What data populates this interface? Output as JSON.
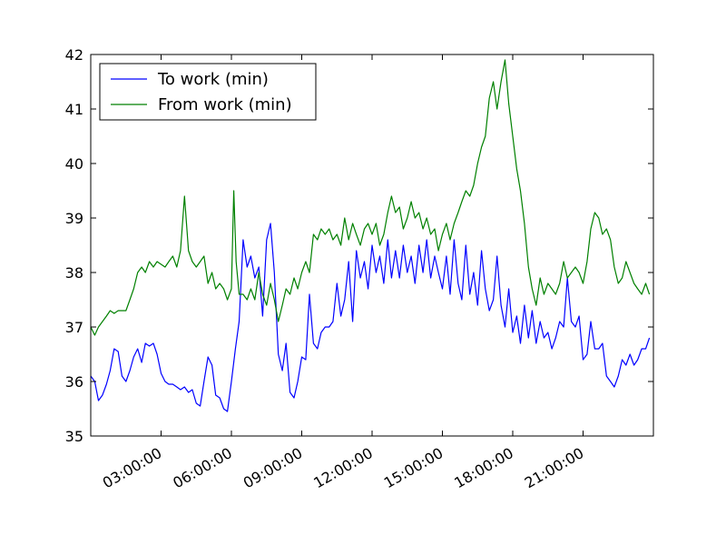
{
  "chart_data": {
    "type": "line",
    "title": "",
    "xlabel": "",
    "ylabel": "",
    "x_unit": "hours",
    "xlim": [
      0,
      24
    ],
    "ylim": [
      35,
      42
    ],
    "grid": false,
    "legend_position": "top-left",
    "y_ticks": [
      "35",
      "36",
      "37",
      "38",
      "39",
      "40",
      "41",
      "42"
    ],
    "x_ticks": [
      {
        "value": 3,
        "label": "03:00:00"
      },
      {
        "value": 6,
        "label": "06:00:00"
      },
      {
        "value": 9,
        "label": "09:00:00"
      },
      {
        "value": 12,
        "label": "12:00:00"
      },
      {
        "value": 15,
        "label": "15:00:00"
      },
      {
        "value": 18,
        "label": "18:00:00"
      },
      {
        "value": 21,
        "label": "21:00:00"
      }
    ],
    "series": [
      {
        "name": "To work (min)",
        "color": "#0000ff",
        "points": [
          [
            0,
            36.1
          ],
          [
            0.17,
            36.0
          ],
          [
            0.33,
            35.65
          ],
          [
            0.5,
            35.75
          ],
          [
            0.67,
            35.95
          ],
          [
            0.83,
            36.2
          ],
          [
            1.0,
            36.6
          ],
          [
            1.17,
            36.55
          ],
          [
            1.33,
            36.1
          ],
          [
            1.5,
            36.0
          ],
          [
            1.67,
            36.2
          ],
          [
            1.83,
            36.45
          ],
          [
            2.0,
            36.6
          ],
          [
            2.17,
            36.35
          ],
          [
            2.33,
            36.7
          ],
          [
            2.5,
            36.65
          ],
          [
            2.67,
            36.7
          ],
          [
            2.83,
            36.5
          ],
          [
            3.0,
            36.15
          ],
          [
            3.17,
            36.0
          ],
          [
            3.33,
            35.95
          ],
          [
            3.5,
            35.95
          ],
          [
            3.67,
            35.9
          ],
          [
            3.83,
            35.85
          ],
          [
            4.0,
            35.9
          ],
          [
            4.17,
            35.8
          ],
          [
            4.33,
            35.85
          ],
          [
            4.5,
            35.6
          ],
          [
            4.67,
            35.55
          ],
          [
            4.83,
            36.0
          ],
          [
            5.0,
            36.45
          ],
          [
            5.17,
            36.3
          ],
          [
            5.33,
            35.75
          ],
          [
            5.5,
            35.7
          ],
          [
            5.67,
            35.5
          ],
          [
            5.83,
            35.45
          ],
          [
            6.0,
            36.0
          ],
          [
            6.17,
            36.6
          ],
          [
            6.33,
            37.1
          ],
          [
            6.5,
            38.6
          ],
          [
            6.67,
            38.1
          ],
          [
            6.83,
            38.3
          ],
          [
            7.0,
            37.9
          ],
          [
            7.17,
            38.1
          ],
          [
            7.33,
            37.2
          ],
          [
            7.5,
            38.6
          ],
          [
            7.67,
            38.9
          ],
          [
            7.83,
            38.0
          ],
          [
            8.0,
            36.5
          ],
          [
            8.17,
            36.2
          ],
          [
            8.33,
            36.7
          ],
          [
            8.5,
            35.8
          ],
          [
            8.67,
            35.7
          ],
          [
            8.83,
            36.0
          ],
          [
            9.0,
            36.45
          ],
          [
            9.17,
            36.4
          ],
          [
            9.33,
            37.6
          ],
          [
            9.5,
            36.7
          ],
          [
            9.67,
            36.6
          ],
          [
            9.83,
            36.9
          ],
          [
            10.0,
            37.0
          ],
          [
            10.17,
            37.0
          ],
          [
            10.33,
            37.1
          ],
          [
            10.5,
            37.8
          ],
          [
            10.67,
            37.2
          ],
          [
            10.83,
            37.5
          ],
          [
            11.0,
            38.2
          ],
          [
            11.17,
            37.1
          ],
          [
            11.33,
            38.4
          ],
          [
            11.5,
            37.9
          ],
          [
            11.67,
            38.2
          ],
          [
            11.83,
            37.7
          ],
          [
            12.0,
            38.5
          ],
          [
            12.17,
            38.0
          ],
          [
            12.33,
            38.3
          ],
          [
            12.5,
            37.8
          ],
          [
            12.67,
            38.6
          ],
          [
            12.83,
            37.9
          ],
          [
            13.0,
            38.4
          ],
          [
            13.17,
            37.9
          ],
          [
            13.33,
            38.5
          ],
          [
            13.5,
            38.0
          ],
          [
            13.67,
            38.3
          ],
          [
            13.83,
            37.8
          ],
          [
            14.0,
            38.5
          ],
          [
            14.17,
            38.0
          ],
          [
            14.33,
            38.6
          ],
          [
            14.5,
            37.9
          ],
          [
            14.67,
            38.3
          ],
          [
            14.83,
            38.0
          ],
          [
            15.0,
            37.7
          ],
          [
            15.17,
            38.3
          ],
          [
            15.33,
            37.6
          ],
          [
            15.5,
            38.6
          ],
          [
            15.67,
            37.8
          ],
          [
            15.83,
            37.5
          ],
          [
            16.0,
            38.5
          ],
          [
            16.17,
            37.6
          ],
          [
            16.33,
            38.0
          ],
          [
            16.5,
            37.4
          ],
          [
            16.67,
            38.4
          ],
          [
            16.83,
            37.7
          ],
          [
            17.0,
            37.3
          ],
          [
            17.17,
            37.5
          ],
          [
            17.33,
            38.3
          ],
          [
            17.5,
            37.4
          ],
          [
            17.67,
            37.0
          ],
          [
            17.83,
            37.7
          ],
          [
            18.0,
            36.9
          ],
          [
            18.17,
            37.2
          ],
          [
            18.33,
            36.7
          ],
          [
            18.5,
            37.4
          ],
          [
            18.67,
            36.8
          ],
          [
            18.83,
            37.3
          ],
          [
            19.0,
            36.7
          ],
          [
            19.17,
            37.1
          ],
          [
            19.33,
            36.8
          ],
          [
            19.5,
            36.9
          ],
          [
            19.67,
            36.6
          ],
          [
            19.83,
            36.8
          ],
          [
            20.0,
            37.1
          ],
          [
            20.17,
            37.0
          ],
          [
            20.33,
            37.9
          ],
          [
            20.5,
            37.1
          ],
          [
            20.67,
            37.0
          ],
          [
            20.83,
            37.2
          ],
          [
            21.0,
            36.4
          ],
          [
            21.17,
            36.5
          ],
          [
            21.33,
            37.1
          ],
          [
            21.5,
            36.6
          ],
          [
            21.67,
            36.6
          ],
          [
            21.83,
            36.7
          ],
          [
            22.0,
            36.1
          ],
          [
            22.17,
            36.0
          ],
          [
            22.33,
            35.9
          ],
          [
            22.5,
            36.1
          ],
          [
            22.67,
            36.4
          ],
          [
            22.83,
            36.3
          ],
          [
            23.0,
            36.5
          ],
          [
            23.17,
            36.3
          ],
          [
            23.33,
            36.4
          ],
          [
            23.5,
            36.6
          ],
          [
            23.67,
            36.6
          ],
          [
            23.83,
            36.8
          ]
        ]
      },
      {
        "name": "From work (min)",
        "color": "#008000",
        "points": [
          [
            0,
            37.0
          ],
          [
            0.17,
            36.85
          ],
          [
            0.33,
            37.0
          ],
          [
            0.5,
            37.1
          ],
          [
            0.67,
            37.2
          ],
          [
            0.83,
            37.3
          ],
          [
            1.0,
            37.25
          ],
          [
            1.17,
            37.3
          ],
          [
            1.33,
            37.3
          ],
          [
            1.5,
            37.3
          ],
          [
            1.67,
            37.5
          ],
          [
            1.83,
            37.7
          ],
          [
            2.0,
            38.0
          ],
          [
            2.17,
            38.1
          ],
          [
            2.33,
            38.0
          ],
          [
            2.5,
            38.2
          ],
          [
            2.67,
            38.1
          ],
          [
            2.83,
            38.2
          ],
          [
            3.0,
            38.15
          ],
          [
            3.17,
            38.1
          ],
          [
            3.33,
            38.2
          ],
          [
            3.5,
            38.3
          ],
          [
            3.67,
            38.1
          ],
          [
            3.83,
            38.4
          ],
          [
            4.0,
            39.4
          ],
          [
            4.17,
            38.4
          ],
          [
            4.33,
            38.2
          ],
          [
            4.5,
            38.1
          ],
          [
            4.67,
            38.2
          ],
          [
            4.83,
            38.3
          ],
          [
            5.0,
            37.8
          ],
          [
            5.17,
            38.0
          ],
          [
            5.33,
            37.7
          ],
          [
            5.5,
            37.8
          ],
          [
            5.67,
            37.7
          ],
          [
            5.83,
            37.5
          ],
          [
            6.0,
            37.7
          ],
          [
            6.1,
            39.5
          ],
          [
            6.2,
            38.2
          ],
          [
            6.33,
            37.6
          ],
          [
            6.5,
            37.6
          ],
          [
            6.67,
            37.5
          ],
          [
            6.83,
            37.7
          ],
          [
            7.0,
            37.5
          ],
          [
            7.17,
            38.0
          ],
          [
            7.33,
            37.6
          ],
          [
            7.5,
            37.4
          ],
          [
            7.67,
            37.8
          ],
          [
            7.83,
            37.5
          ],
          [
            8.0,
            37.1
          ],
          [
            8.17,
            37.4
          ],
          [
            8.33,
            37.7
          ],
          [
            8.5,
            37.6
          ],
          [
            8.67,
            37.9
          ],
          [
            8.83,
            37.7
          ],
          [
            9.0,
            38.0
          ],
          [
            9.17,
            38.2
          ],
          [
            9.33,
            38.0
          ],
          [
            9.5,
            38.7
          ],
          [
            9.67,
            38.6
          ],
          [
            9.83,
            38.8
          ],
          [
            10.0,
            38.7
          ],
          [
            10.17,
            38.8
          ],
          [
            10.33,
            38.6
          ],
          [
            10.5,
            38.7
          ],
          [
            10.67,
            38.5
          ],
          [
            10.83,
            39.0
          ],
          [
            11.0,
            38.6
          ],
          [
            11.17,
            38.9
          ],
          [
            11.33,
            38.7
          ],
          [
            11.5,
            38.5
          ],
          [
            11.67,
            38.8
          ],
          [
            11.83,
            38.9
          ],
          [
            12.0,
            38.7
          ],
          [
            12.17,
            38.9
          ],
          [
            12.33,
            38.5
          ],
          [
            12.5,
            38.7
          ],
          [
            12.67,
            39.1
          ],
          [
            12.83,
            39.4
          ],
          [
            13.0,
            39.1
          ],
          [
            13.17,
            39.2
          ],
          [
            13.33,
            38.8
          ],
          [
            13.5,
            39.0
          ],
          [
            13.67,
            39.3
          ],
          [
            13.83,
            39.0
          ],
          [
            14.0,
            39.1
          ],
          [
            14.17,
            38.8
          ],
          [
            14.33,
            39.0
          ],
          [
            14.5,
            38.7
          ],
          [
            14.67,
            38.8
          ],
          [
            14.83,
            38.4
          ],
          [
            15.0,
            38.7
          ],
          [
            15.17,
            38.9
          ],
          [
            15.33,
            38.6
          ],
          [
            15.5,
            38.9
          ],
          [
            15.67,
            39.1
          ],
          [
            15.83,
            39.3
          ],
          [
            16.0,
            39.5
          ],
          [
            16.17,
            39.4
          ],
          [
            16.33,
            39.6
          ],
          [
            16.5,
            40.0
          ],
          [
            16.67,
            40.3
          ],
          [
            16.83,
            40.5
          ],
          [
            17.0,
            41.2
          ],
          [
            17.17,
            41.5
          ],
          [
            17.33,
            41.0
          ],
          [
            17.5,
            41.5
          ],
          [
            17.67,
            41.9
          ],
          [
            17.83,
            41.1
          ],
          [
            18.0,
            40.5
          ],
          [
            18.17,
            39.9
          ],
          [
            18.33,
            39.5
          ],
          [
            18.5,
            38.9
          ],
          [
            18.67,
            38.1
          ],
          [
            18.83,
            37.7
          ],
          [
            19.0,
            37.4
          ],
          [
            19.17,
            37.9
          ],
          [
            19.33,
            37.6
          ],
          [
            19.5,
            37.8
          ],
          [
            19.67,
            37.7
          ],
          [
            19.83,
            37.6
          ],
          [
            20.0,
            37.8
          ],
          [
            20.17,
            38.2
          ],
          [
            20.33,
            37.9
          ],
          [
            20.5,
            38.0
          ],
          [
            20.67,
            38.1
          ],
          [
            20.83,
            38.0
          ],
          [
            21.0,
            37.8
          ],
          [
            21.17,
            38.2
          ],
          [
            21.33,
            38.8
          ],
          [
            21.5,
            39.1
          ],
          [
            21.67,
            39.0
          ],
          [
            21.83,
            38.7
          ],
          [
            22.0,
            38.8
          ],
          [
            22.17,
            38.6
          ],
          [
            22.33,
            38.1
          ],
          [
            22.5,
            37.8
          ],
          [
            22.67,
            37.9
          ],
          [
            22.83,
            38.2
          ],
          [
            23.0,
            38.0
          ],
          [
            23.17,
            37.8
          ],
          [
            23.33,
            37.7
          ],
          [
            23.5,
            37.6
          ],
          [
            23.67,
            37.8
          ],
          [
            23.83,
            37.6
          ]
        ]
      }
    ]
  }
}
